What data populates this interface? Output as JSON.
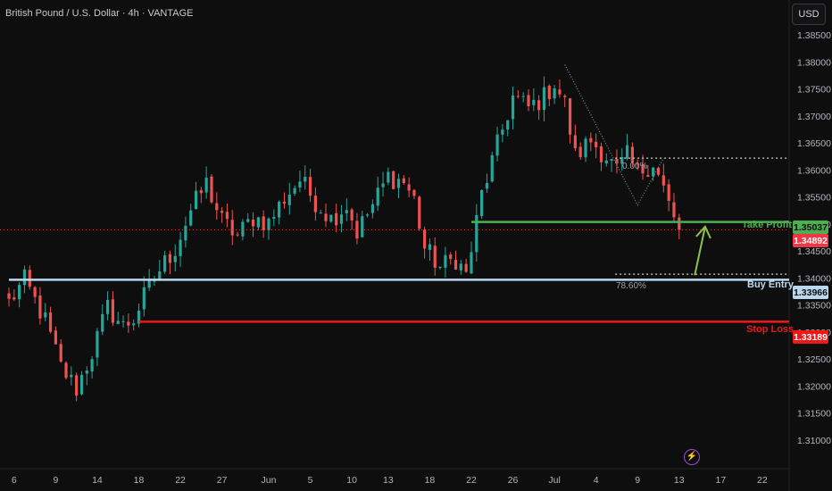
{
  "header": {
    "title": "British Pound / U.S. Dollar · 4h · VANTAGE",
    "currency_button": "USD"
  },
  "colors": {
    "background": "#0e0e0e",
    "bull": "#26a69a",
    "bear": "#ef5350",
    "take_profit": "#4caf50",
    "stop_loss": "#f21616",
    "buy_entry": "#bcd8f0",
    "current": "#f23645"
  },
  "chart_data": {
    "type": "candlestick",
    "title": "British Pound / U.S. Dollar · 4h · VANTAGE",
    "ylim": [
      1.306,
      1.389
    ],
    "y_ticks": [
      "1.38500",
      "1.38000",
      "1.37500",
      "1.37000",
      "1.36500",
      "1.36000",
      "1.35500",
      "1.35000",
      "1.34500",
      "1.34000",
      "1.33500",
      "1.33000",
      "1.32500",
      "1.32000",
      "1.31500",
      "1.31000"
    ],
    "y_tick_values": [
      1.385,
      1.38,
      1.375,
      1.37,
      1.365,
      1.36,
      1.355,
      1.35,
      1.345,
      1.34,
      1.335,
      1.33,
      1.325,
      1.32,
      1.315,
      1.31
    ],
    "x_ticks": [
      "6",
      "9",
      "14",
      "18",
      "22",
      "27",
      "Jun",
      "5",
      "10",
      "13",
      "18",
      "22",
      "26",
      "Jul",
      "4",
      "9",
      "13",
      "17",
      "22"
    ],
    "x_tick_index": [
      1,
      9,
      17,
      25,
      33,
      41,
      50,
      58,
      66,
      73,
      81,
      89,
      97,
      105,
      113,
      121,
      129,
      137,
      145
    ],
    "close_path": [
      [
        0,
        1.3355
      ],
      [
        3,
        1.3395
      ],
      [
        7,
        1.332
      ],
      [
        10,
        1.3235
      ],
      [
        13,
        1.3195
      ],
      [
        16,
        1.3262
      ],
      [
        19,
        1.3345
      ],
      [
        22,
        1.331
      ],
      [
        24,
        1.3325
      ],
      [
        26,
        1.3365
      ],
      [
        29,
        1.3415
      ],
      [
        32,
        1.3455
      ],
      [
        35,
        1.3525
      ],
      [
        38,
        1.3575
      ],
      [
        41,
        1.3505
      ],
      [
        44,
        1.3478
      ],
      [
        47,
        1.3512
      ],
      [
        50,
        1.3502
      ],
      [
        53,
        1.3548
      ],
      [
        56,
        1.3582
      ],
      [
        59,
        1.3542
      ],
      [
        62,
        1.351
      ],
      [
        65,
        1.3535
      ],
      [
        67,
        1.3485
      ],
      [
        70,
        1.3535
      ],
      [
        73,
        1.3588
      ],
      [
        76,
        1.3578
      ],
      [
        78,
        1.3545
      ],
      [
        80,
        1.3455
      ],
      [
        83,
        1.342
      ],
      [
        86,
        1.3436
      ],
      [
        88,
        1.3405
      ],
      [
        89,
        1.3452
      ],
      [
        91,
        1.3555
      ],
      [
        94,
        1.3645
      ],
      [
        97,
        1.3735
      ],
      [
        100,
        1.3715
      ],
      [
        103,
        1.3735
      ],
      [
        105,
        1.3762
      ],
      [
        107,
        1.3722
      ],
      [
        109,
        1.3625
      ],
      [
        112,
        1.3655
      ],
      [
        115,
        1.3625
      ],
      [
        117,
        1.3598
      ],
      [
        119,
        1.3625
      ],
      [
        121,
        1.3595
      ],
      [
        124,
        1.3615
      ],
      [
        126,
        1.3565
      ],
      [
        128,
        1.3505
      ],
      [
        129,
        1.3489
      ]
    ],
    "last_index": 129,
    "current_price": "1.34892",
    "current_price_value": 1.34892,
    "levels": [
      {
        "name": "Take Profit",
        "value": 1.35037,
        "price_label": "1.35037",
        "start_index": 89
      },
      {
        "name": "Buy Entry",
        "value": 1.33966,
        "price_label": "1.33966",
        "start_index": 0
      },
      {
        "name": "Stop Loss",
        "value": 1.33189,
        "price_label": "1.33189",
        "start_index": 25
      }
    ],
    "fib": [
      {
        "label": "0.00%",
        "value": 1.3622,
        "start_index": 116
      },
      {
        "label": "78.60%",
        "value": 1.3407,
        "start_index": 116
      }
    ],
    "annotation_arrow": {
      "from_index": 132,
      "from": 1.3405,
      "to_index": 134,
      "to": 1.3495
    }
  },
  "levels_text": {
    "take_profit": "Take Profit",
    "buy_entry": "Buy Entry",
    "stop_loss": "Stop Loss",
    "fib_0": "0.00%",
    "fib_786": "78.60%",
    "tp_price": "1.35037",
    "current_price": "1.34892",
    "entry_price": "1.33966",
    "sl_price": "1.33189"
  }
}
